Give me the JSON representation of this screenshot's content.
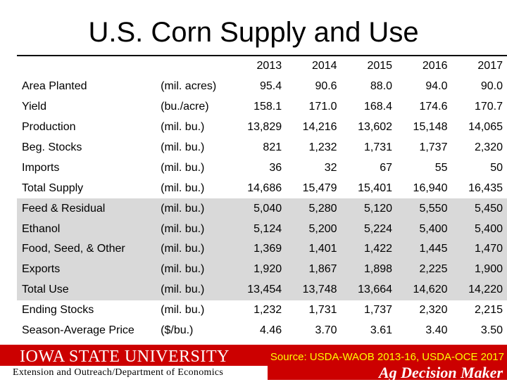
{
  "title": "U.S. Corn Supply and Use",
  "years": [
    "2013",
    "2014",
    "2015",
    "2016",
    "2017"
  ],
  "rows": [
    {
      "label": "Area Planted",
      "unit": "(mil. acres)",
      "values": [
        "95.4",
        "90.6",
        "88.0",
        "94.0",
        "90.0"
      ],
      "shaded": false
    },
    {
      "label": "Yield",
      "unit": "(bu./acre)",
      "values": [
        "158.1",
        "171.0",
        "168.4",
        "174.6",
        "170.7"
      ],
      "shaded": false
    },
    {
      "label": "Production",
      "unit": "(mil. bu.)",
      "values": [
        "13,829",
        "14,216",
        "13,602",
        "15,148",
        "14,065"
      ],
      "shaded": false
    },
    {
      "label": "Beg. Stocks",
      "unit": "(mil. bu.)",
      "values": [
        "821",
        "1,232",
        "1,731",
        "1,737",
        "2,320"
      ],
      "shaded": false
    },
    {
      "label": "Imports",
      "unit": "(mil. bu.)",
      "values": [
        "36",
        "32",
        "67",
        "55",
        "50"
      ],
      "shaded": false
    },
    {
      "label": "Total Supply",
      "unit": "(mil. bu.)",
      "values": [
        "14,686",
        "15,479",
        "15,401",
        "16,940",
        "16,435"
      ],
      "shaded": false
    },
    {
      "label": "Feed & Residual",
      "unit": "(mil. bu.)",
      "values": [
        "5,040",
        "5,280",
        "5,120",
        "5,550",
        "5,450"
      ],
      "shaded": true
    },
    {
      "label": "Ethanol",
      "unit": "(mil. bu.)",
      "values": [
        "5,124",
        "5,200",
        "5,224",
        "5,400",
        "5,400"
      ],
      "shaded": true
    },
    {
      "label": "Food, Seed, & Other",
      "unit": "(mil. bu.)",
      "values": [
        "1,369",
        "1,401",
        "1,422",
        "1,445",
        "1,470"
      ],
      "shaded": true
    },
    {
      "label": "Exports",
      "unit": "(mil. bu.)",
      "values": [
        "1,920",
        "1,867",
        "1,898",
        "2,225",
        "1,900"
      ],
      "shaded": true
    },
    {
      "label": "Total Use",
      "unit": "(mil. bu.)",
      "values": [
        "13,454",
        "13,748",
        "13,664",
        "14,620",
        "14,220"
      ],
      "shaded": true
    },
    {
      "label": "Ending Stocks",
      "unit": "(mil. bu.)",
      "values": [
        "1,232",
        "1,731",
        "1,737",
        "2,320",
        "2,215"
      ],
      "shaded": false
    },
    {
      "label": "Season-Average Price",
      "unit": "($/bu.)",
      "values": [
        "4.46",
        "3.70",
        "3.61",
        "3.40",
        "3.50"
      ],
      "shaded": false
    }
  ],
  "footer": {
    "university": "Iowa State University",
    "source": "Source: USDA-WAOB 2013-16, USDA-OCE 2017",
    "department": "Extension and Outreach/Department of Economics",
    "brand": "Ag Decision Maker"
  },
  "colors": {
    "footer_red": "#cc0000",
    "source_text": "#ffff00",
    "shade": "#d9d9d9"
  }
}
